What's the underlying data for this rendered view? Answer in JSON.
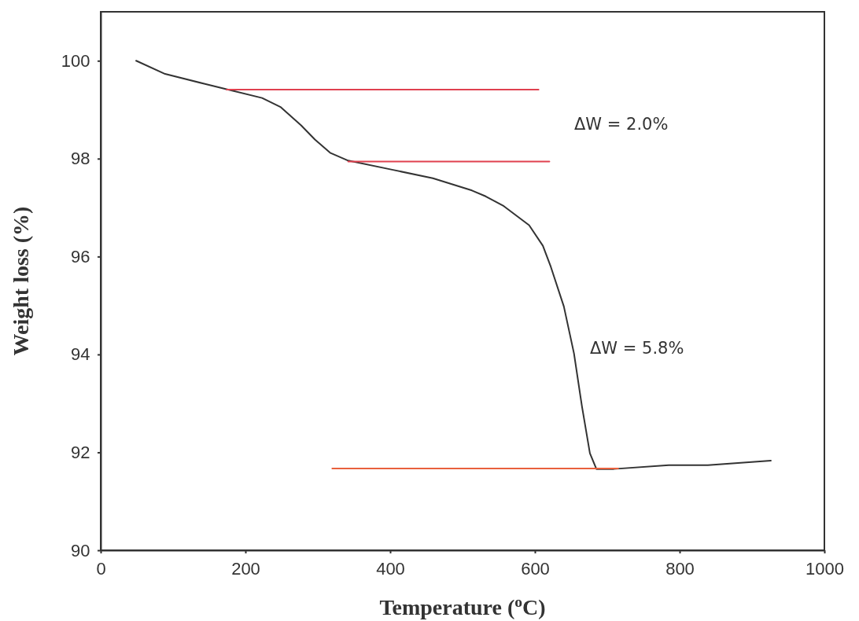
{
  "chart_data": {
    "type": "line",
    "xlabel": "Temperature ($^{o}$C)",
    "ylabel": "Weight loss (%)",
    "xlim": [
      0,
      1000
    ],
    "xticks": [
      0,
      200,
      400,
      600,
      800,
      1000
    ],
    "ylim": [
      90,
      101
    ],
    "yticks": [
      90,
      92,
      94,
      96,
      98,
      100
    ],
    "grid": false,
    "series": [
      {
        "color": "#333333",
        "x": [
          49,
          89,
          143,
          176,
          223,
          249,
          277,
          296,
          317,
          342,
          404,
          459,
          513,
          532,
          557,
          592,
          611,
          622,
          640,
          654,
          665,
          676,
          685,
          709,
          785,
          839,
          926
        ],
        "values": [
          100.0,
          99.73,
          99.53,
          99.41,
          99.24,
          99.05,
          98.68,
          98.39,
          98.12,
          97.96,
          97.77,
          97.6,
          97.35,
          97.23,
          97.03,
          96.64,
          96.22,
          95.79,
          94.98,
          94.02,
          92.94,
          91.98,
          91.66,
          91.66,
          91.74,
          91.74,
          91.83
        ]
      },
      {
        "color": "#e0414f",
        "x": [
          174,
          605
        ],
        "values": [
          99.41,
          99.41
        ]
      },
      {
        "color": "#e0414f",
        "x": [
          342,
          620
        ],
        "values": [
          97.94,
          97.94
        ]
      },
      {
        "color": "#e8603c",
        "x": [
          320,
          715
        ],
        "values": [
          91.67,
          91.67
        ]
      }
    ],
    "annotations": [
      "ΔW = 2.0%",
      "ΔW = 5.8%"
    ]
  }
}
